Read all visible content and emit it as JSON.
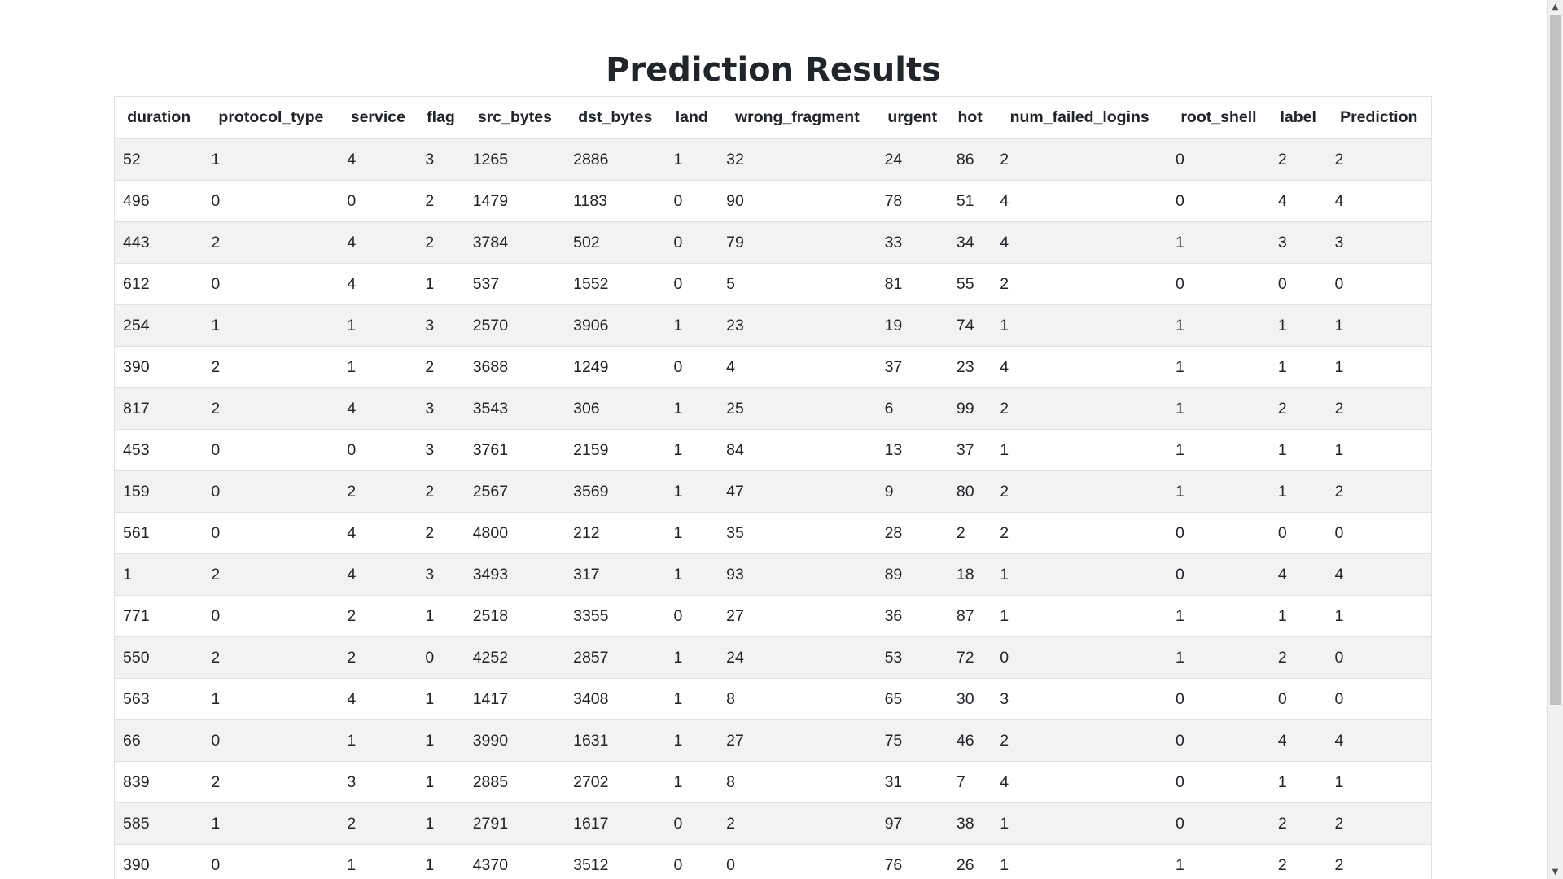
{
  "page": {
    "title": "Prediction Results"
  },
  "table": {
    "columns": [
      "duration",
      "protocol_type",
      "service",
      "flag",
      "src_bytes",
      "dst_bytes",
      "land",
      "wrong_fragment",
      "urgent",
      "hot",
      "num_failed_logins",
      "root_shell",
      "label",
      "Prediction"
    ],
    "rows": [
      [
        "52",
        "1",
        "4",
        "3",
        "1265",
        "2886",
        "1",
        "32",
        "24",
        "86",
        "2",
        "0",
        "2",
        "2"
      ],
      [
        "496",
        "0",
        "0",
        "2",
        "1479",
        "1183",
        "0",
        "90",
        "78",
        "51",
        "4",
        "0",
        "4",
        "4"
      ],
      [
        "443",
        "2",
        "4",
        "2",
        "3784",
        "502",
        "0",
        "79",
        "33",
        "34",
        "4",
        "1",
        "3",
        "3"
      ],
      [
        "612",
        "0",
        "4",
        "1",
        "537",
        "1552",
        "0",
        "5",
        "81",
        "55",
        "2",
        "0",
        "0",
        "0"
      ],
      [
        "254",
        "1",
        "1",
        "3",
        "2570",
        "3906",
        "1",
        "23",
        "19",
        "74",
        "1",
        "1",
        "1",
        "1"
      ],
      [
        "390",
        "2",
        "1",
        "2",
        "3688",
        "1249",
        "0",
        "4",
        "37",
        "23",
        "4",
        "1",
        "1",
        "1"
      ],
      [
        "817",
        "2",
        "4",
        "3",
        "3543",
        "306",
        "1",
        "25",
        "6",
        "99",
        "2",
        "1",
        "2",
        "2"
      ],
      [
        "453",
        "0",
        "0",
        "3",
        "3761",
        "2159",
        "1",
        "84",
        "13",
        "37",
        "1",
        "1",
        "1",
        "1"
      ],
      [
        "159",
        "0",
        "2",
        "2",
        "2567",
        "3569",
        "1",
        "47",
        "9",
        "80",
        "2",
        "1",
        "1",
        "2"
      ],
      [
        "561",
        "0",
        "4",
        "2",
        "4800",
        "212",
        "1",
        "35",
        "28",
        "2",
        "2",
        "0",
        "0",
        "0"
      ],
      [
        "1",
        "2",
        "4",
        "3",
        "3493",
        "317",
        "1",
        "93",
        "89",
        "18",
        "1",
        "0",
        "4",
        "4"
      ],
      [
        "771",
        "0",
        "2",
        "1",
        "2518",
        "3355",
        "0",
        "27",
        "36",
        "87",
        "1",
        "1",
        "1",
        "1"
      ],
      [
        "550",
        "2",
        "2",
        "0",
        "4252",
        "2857",
        "1",
        "24",
        "53",
        "72",
        "0",
        "1",
        "2",
        "0"
      ],
      [
        "563",
        "1",
        "4",
        "1",
        "1417",
        "3408",
        "1",
        "8",
        "65",
        "30",
        "3",
        "0",
        "0",
        "0"
      ],
      [
        "66",
        "0",
        "1",
        "1",
        "3990",
        "1631",
        "1",
        "27",
        "75",
        "46",
        "2",
        "0",
        "4",
        "4"
      ],
      [
        "839",
        "2",
        "3",
        "1",
        "2885",
        "2702",
        "1",
        "8",
        "31",
        "7",
        "4",
        "0",
        "1",
        "1"
      ],
      [
        "585",
        "1",
        "2",
        "1",
        "2791",
        "1617",
        "0",
        "2",
        "97",
        "38",
        "1",
        "0",
        "2",
        "2"
      ],
      [
        "390",
        "0",
        "1",
        "1",
        "4370",
        "3512",
        "0",
        "0",
        "76",
        "26",
        "1",
        "1",
        "2",
        "2"
      ]
    ]
  },
  "scrollbar": {
    "up_icon": "arrow-up-icon",
    "down_icon": "arrow-down-icon"
  }
}
